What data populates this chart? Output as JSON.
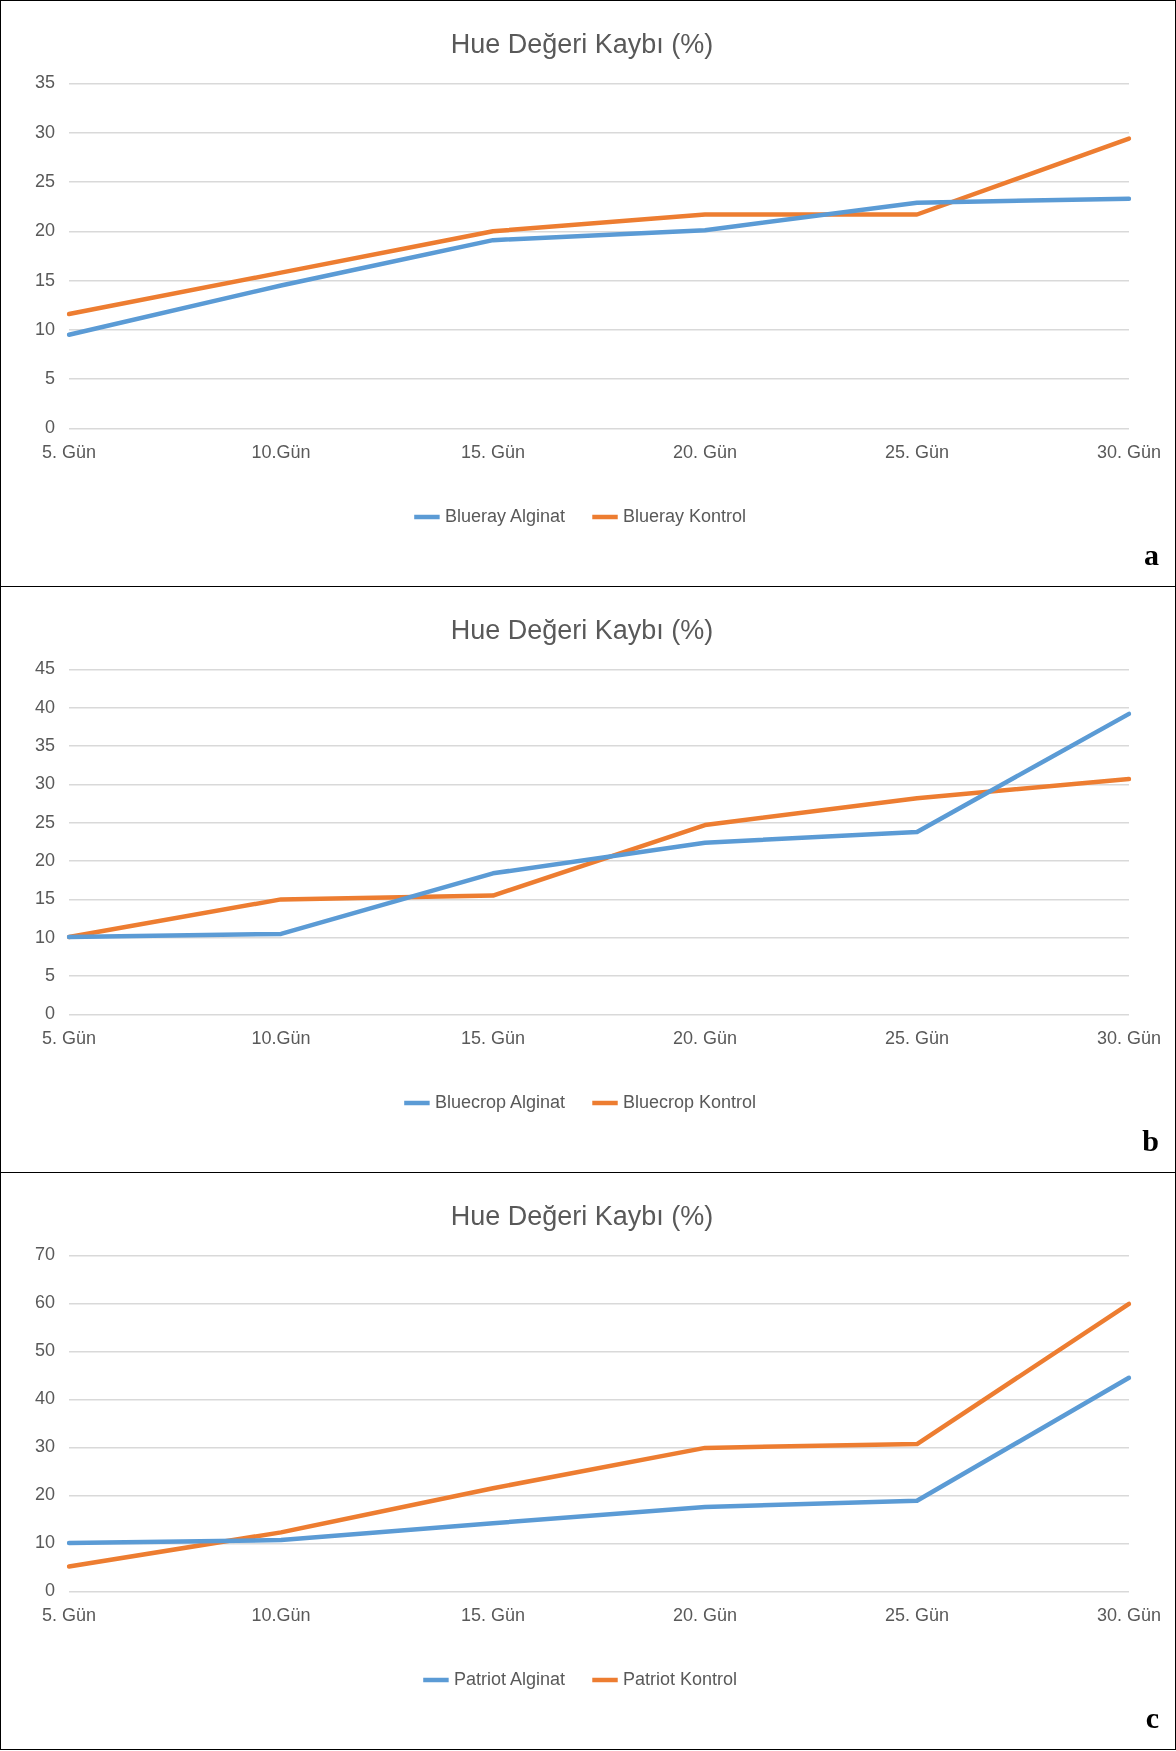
{
  "chart_data": [
    {
      "type": "line",
      "title": "Hue Değeri Kaybı (%)",
      "categories": [
        "5. Gün",
        "10.Gün",
        "15. Gün",
        "20. Gün",
        "25. Gün",
        "30. Gün"
      ],
      "series": [
        {
          "name": "Blueray Alginat",
          "color": "#5b9bd5",
          "values": [
            9.5,
            14.5,
            19.1,
            20.1,
            22.9,
            23.3
          ]
        },
        {
          "name": "Blueray Kontrol",
          "color": "#ed7d31",
          "values": [
            11.6,
            15.8,
            20.0,
            21.7,
            21.7,
            29.4
          ]
        }
      ],
      "ylim": [
        0,
        35
      ],
      "yticks": [
        0,
        5,
        10,
        15,
        20,
        25,
        30,
        35
      ],
      "grid": "y",
      "legend": "bottom",
      "marker": "none",
      "line_style": "solid",
      "annotations": [
        "a"
      ]
    },
    {
      "type": "line",
      "title": "Hue Değeri Kaybı (%)",
      "categories": [
        "5. Gün",
        "10.Gün",
        "15. Gün",
        "20. Gün",
        "25. Gün",
        "30. Gün"
      ],
      "series": [
        {
          "name": "Bluecrop Alginat",
          "color": "#5b9bd5",
          "values": [
            10.1,
            10.5,
            18.4,
            22.4,
            23.8,
            39.2
          ]
        },
        {
          "name": "Bluecrop Kontrol",
          "color": "#ed7d31",
          "values": [
            10.1,
            15.0,
            15.5,
            24.7,
            28.2,
            30.7
          ]
        }
      ],
      "ylim": [
        0,
        45
      ],
      "yticks": [
        0,
        5,
        10,
        15,
        20,
        25,
        30,
        35,
        40,
        45
      ],
      "grid": "y",
      "legend": "bottom",
      "marker": "none",
      "line_style": "solid",
      "annotations": [
        "b"
      ]
    },
    {
      "type": "line",
      "title": "Hue Değeri Kaybı (%)",
      "categories": [
        "5. Gün",
        "10.Gün",
        "15. Gün",
        "20. Gün",
        "25. Gün",
        "30. Gün"
      ],
      "series": [
        {
          "name": "Patriot Alginat",
          "color": "#5b9bd5",
          "values": [
            10.1,
            10.7,
            14.2,
            17.6,
            18.9,
            44.5
          ]
        },
        {
          "name": "Patriot Kontrol",
          "color": "#ed7d31",
          "values": [
            5.2,
            12.3,
            21.5,
            29.9,
            30.7,
            59.9
          ]
        }
      ],
      "ylim": [
        0,
        70
      ],
      "yticks": [
        0,
        10,
        20,
        30,
        40,
        50,
        60,
        70
      ],
      "grid": "y",
      "legend": "bottom",
      "marker": "none",
      "line_style": "solid",
      "annotations": [
        "c"
      ]
    }
  ]
}
